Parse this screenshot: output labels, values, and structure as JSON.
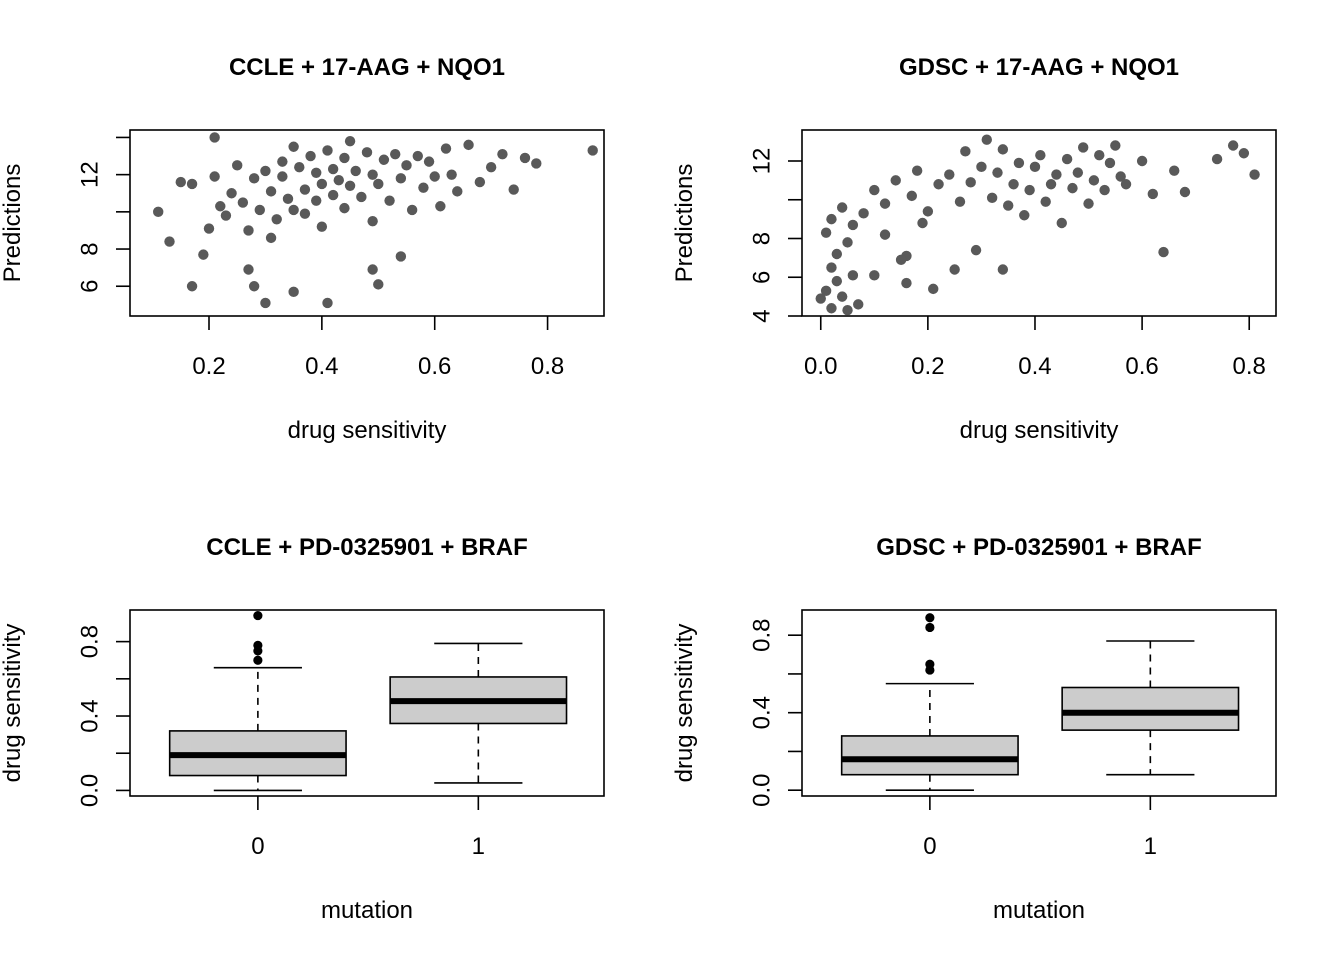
{
  "chart_data": [
    {
      "type": "scatter",
      "title": "CCLE + 17-AAG + NQO1",
      "xlabel": "drug sensitivity",
      "ylabel": "Predictions",
      "xlim": [
        0.06,
        0.9
      ],
      "ylim": [
        4.4,
        14.4
      ],
      "xticks": [
        0.2,
        0.4,
        0.6,
        0.8
      ],
      "yticks": [
        6,
        8,
        10,
        12,
        14
      ],
      "ytick_labels": [
        "6",
        "8",
        "",
        "12",
        ""
      ],
      "points": [
        [
          0.11,
          10
        ],
        [
          0.13,
          8.4
        ],
        [
          0.15,
          11.6
        ],
        [
          0.17,
          11.5
        ],
        [
          0.19,
          7.7
        ],
        [
          0.21,
          14
        ],
        [
          0.21,
          11.9
        ],
        [
          0.22,
          10.3
        ],
        [
          0.23,
          9.8
        ],
        [
          0.24,
          11
        ],
        [
          0.25,
          12.5
        ],
        [
          0.26,
          10.5
        ],
        [
          0.27,
          9
        ],
        [
          0.28,
          11.8
        ],
        [
          0.29,
          10.1
        ],
        [
          0.3,
          12.2
        ],
        [
          0.31,
          11.1
        ],
        [
          0.31,
          8.6
        ],
        [
          0.32,
          9.6
        ],
        [
          0.33,
          12.7
        ],
        [
          0.33,
          11.9
        ],
        [
          0.34,
          10.7
        ],
        [
          0.35,
          13.5
        ],
        [
          0.35,
          10.1
        ],
        [
          0.36,
          12.4
        ],
        [
          0.37,
          11.2
        ],
        [
          0.37,
          9.9
        ],
        [
          0.38,
          13
        ],
        [
          0.39,
          12.1
        ],
        [
          0.39,
          10.6
        ],
        [
          0.4,
          11.5
        ],
        [
          0.4,
          9.2
        ],
        [
          0.41,
          13.3
        ],
        [
          0.42,
          12.3
        ],
        [
          0.42,
          10.9
        ],
        [
          0.43,
          11.7
        ],
        [
          0.44,
          12.9
        ],
        [
          0.44,
          10.2
        ],
        [
          0.45,
          13.8
        ],
        [
          0.45,
          11.4
        ],
        [
          0.46,
          12.2
        ],
        [
          0.47,
          10.8
        ],
        [
          0.48,
          13.2
        ],
        [
          0.49,
          12
        ],
        [
          0.49,
          9.5
        ],
        [
          0.5,
          11.5
        ],
        [
          0.51,
          12.8
        ],
        [
          0.52,
          10.6
        ],
        [
          0.53,
          13.1
        ],
        [
          0.54,
          11.8
        ],
        [
          0.55,
          12.5
        ],
        [
          0.56,
          10.1
        ],
        [
          0.57,
          13
        ],
        [
          0.58,
          11.3
        ],
        [
          0.59,
          12.7
        ],
        [
          0.6,
          11.9
        ],
        [
          0.61,
          10.3
        ],
        [
          0.62,
          13.4
        ],
        [
          0.63,
          12
        ],
        [
          0.64,
          11.1
        ],
        [
          0.66,
          13.6
        ],
        [
          0.68,
          11.6
        ],
        [
          0.7,
          12.4
        ],
        [
          0.72,
          13.1
        ],
        [
          0.74,
          11.2
        ],
        [
          0.76,
          12.9
        ],
        [
          0.78,
          12.6
        ],
        [
          0.88,
          13.3
        ],
        [
          0.3,
          5.1
        ],
        [
          0.41,
          5.1
        ],
        [
          0.35,
          5.7
        ],
        [
          0.5,
          6.1
        ],
        [
          0.17,
          6
        ],
        [
          0.28,
          6
        ],
        [
          0.2,
          9.1
        ],
        [
          0.27,
          6.9
        ],
        [
          0.49,
          6.9
        ],
        [
          0.54,
          7.6
        ]
      ]
    },
    {
      "type": "scatter",
      "title": "GDSC + 17-AAG + NQO1",
      "xlabel": "drug sensitivity",
      "ylabel": "Predictions",
      "xlim": [
        -0.035,
        0.85
      ],
      "ylim": [
        4,
        13.6
      ],
      "xticks": [
        0.0,
        0.2,
        0.4,
        0.6,
        0.8
      ],
      "yticks": [
        4,
        6,
        8,
        10,
        12
      ],
      "ytick_labels": [
        "4",
        "6",
        "8",
        "",
        "12"
      ],
      "points": [
        [
          0,
          4.9
        ],
        [
          0.01,
          5.3
        ],
        [
          0.02,
          4.4
        ],
        [
          0.03,
          5.8
        ],
        [
          0.04,
          5
        ],
        [
          0.05,
          4.3
        ],
        [
          0.06,
          6.1
        ],
        [
          0.07,
          4.6
        ],
        [
          0.02,
          6.5
        ],
        [
          0.03,
          7.2
        ],
        [
          0.05,
          7.8
        ],
        [
          0.01,
          8.3
        ],
        [
          0.02,
          9
        ],
        [
          0.04,
          9.6
        ],
        [
          0.06,
          8.7
        ],
        [
          0.08,
          9.3
        ],
        [
          0.1,
          10.5
        ],
        [
          0.12,
          9.8
        ],
        [
          0.14,
          11
        ],
        [
          0.16,
          7.1
        ],
        [
          0.17,
          10.2
        ],
        [
          0.18,
          11.5
        ],
        [
          0.2,
          9.4
        ],
        [
          0.22,
          10.8
        ],
        [
          0.24,
          11.3
        ],
        [
          0.26,
          9.9
        ],
        [
          0.27,
          12.5
        ],
        [
          0.28,
          10.9
        ],
        [
          0.29,
          7.4
        ],
        [
          0.3,
          11.7
        ],
        [
          0.31,
          13.1
        ],
        [
          0.32,
          10.1
        ],
        [
          0.33,
          11.4
        ],
        [
          0.34,
          12.6
        ],
        [
          0.35,
          9.7
        ],
        [
          0.36,
          10.8
        ],
        [
          0.37,
          11.9
        ],
        [
          0.38,
          9.2
        ],
        [
          0.39,
          10.5
        ],
        [
          0.4,
          11.7
        ],
        [
          0.41,
          12.3
        ],
        [
          0.42,
          9.9
        ],
        [
          0.43,
          10.8
        ],
        [
          0.44,
          11.3
        ],
        [
          0.45,
          8.8
        ],
        [
          0.46,
          12.1
        ],
        [
          0.47,
          10.6
        ],
        [
          0.48,
          11.4
        ],
        [
          0.49,
          12.7
        ],
        [
          0.5,
          9.8
        ],
        [
          0.51,
          11
        ],
        [
          0.52,
          12.3
        ],
        [
          0.53,
          10.5
        ],
        [
          0.54,
          11.9
        ],
        [
          0.55,
          12.8
        ],
        [
          0.56,
          11.2
        ],
        [
          0.57,
          10.8
        ],
        [
          0.6,
          12
        ],
        [
          0.62,
          10.3
        ],
        [
          0.64,
          7.3
        ],
        [
          0.66,
          11.5
        ],
        [
          0.68,
          10.4
        ],
        [
          0.74,
          12.1
        ],
        [
          0.77,
          12.8
        ],
        [
          0.79,
          12.4
        ],
        [
          0.81,
          11.3
        ],
        [
          0.16,
          5.7
        ],
        [
          0.21,
          5.4
        ],
        [
          0.25,
          6.4
        ],
        [
          0.34,
          6.4
        ],
        [
          0.1,
          6.1
        ],
        [
          0.12,
          8.2
        ],
        [
          0.19,
          8.8
        ],
        [
          0.15,
          6.9
        ]
      ]
    },
    {
      "type": "box",
      "title": "CCLE + PD-0325901 + BRAF",
      "xlabel": "mutation",
      "ylabel": "drug sensitivity",
      "categories": [
        "0",
        "1"
      ],
      "ylim": [
        -0.03,
        0.97
      ],
      "yticks": [
        0.0,
        0.2,
        0.4,
        0.6,
        0.8
      ],
      "ytick_labels": [
        "0.0",
        "",
        "0.4",
        "",
        "0.8"
      ],
      "boxes": [
        {
          "min": 0.0,
          "q1": 0.08,
          "median": 0.19,
          "q3": 0.32,
          "max": 0.66,
          "outliers": [
            0.7,
            0.75,
            0.78,
            0.94
          ]
        },
        {
          "min": 0.04,
          "q1": 0.36,
          "median": 0.48,
          "q3": 0.61,
          "max": 0.79,
          "outliers": []
        }
      ]
    },
    {
      "type": "box",
      "title": "GDSC + PD-0325901 + BRAF",
      "xlabel": "mutation",
      "ylabel": "drug sensitivity",
      "categories": [
        "0",
        "1"
      ],
      "ylim": [
        -0.03,
        0.93
      ],
      "yticks": [
        0.0,
        0.2,
        0.4,
        0.6,
        0.8
      ],
      "ytick_labels": [
        "0.0",
        "",
        "0.4",
        "",
        "0.8"
      ],
      "boxes": [
        {
          "min": 0.0,
          "q1": 0.08,
          "median": 0.16,
          "q3": 0.28,
          "max": 0.55,
          "outliers": [
            0.62,
            0.65,
            0.84,
            0.89
          ]
        },
        {
          "min": 0.08,
          "q1": 0.31,
          "median": 0.4,
          "q3": 0.53,
          "max": 0.77,
          "outliers": []
        }
      ]
    }
  ]
}
